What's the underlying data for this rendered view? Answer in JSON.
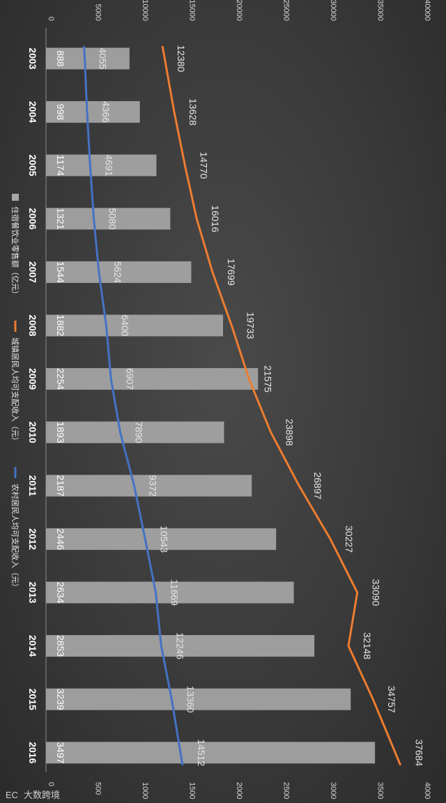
{
  "chart_data": {
    "type": "bar",
    "orientation": "rotated-90-clockwise",
    "categories": [
      "2003",
      "2004",
      "2005",
      "2006",
      "2007",
      "2008",
      "2009",
      "2010",
      "2011",
      "2012",
      "2013",
      "2014",
      "2015",
      "2016"
    ],
    "series": [
      {
        "name": "住宿餐饮业零售额（亿元）",
        "type": "bar",
        "axis": "secondary",
        "color": "#a6a6a6",
        "values": [
          888,
          998,
          1174,
          1321,
          1544,
          1882,
          2254,
          1893,
          2187,
          2446,
          2634,
          2853,
          3239,
          3497
        ]
      },
      {
        "name": "城镇居民人均可支配收入（元）",
        "type": "line",
        "axis": "primary",
        "color": "#ed7d31",
        "values": [
          12380,
          13628,
          14770,
          16016,
          17699,
          19733,
          21575,
          23898,
          26897,
          30227,
          33090,
          32148,
          34757,
          37684
        ]
      },
      {
        "name": "农村居民人均可支配收入（元）",
        "type": "line",
        "axis": "primary",
        "color": "#4472c4",
        "values": [
          4055,
          4366,
          4691,
          5080,
          5624,
          6400,
          6907,
          7890,
          9372,
          10543,
          11669,
          12246,
          13360,
          14512
        ]
      }
    ],
    "primary_axis": {
      "range": [
        0,
        40000
      ],
      "ticks": [
        "0",
        "5000",
        "10000",
        "15000",
        "20000",
        "25000",
        "30000",
        "35000",
        "40000"
      ]
    },
    "secondary_axis": {
      "range": [
        0,
        4000
      ],
      "ticks": [
        "0",
        "500",
        "1000",
        "1500",
        "2000",
        "2500",
        "3000",
        "3500",
        "4000"
      ]
    },
    "legend_position": "right",
    "grid": false
  },
  "watermark": "大数跨境",
  "watermark_logo_text": "EC"
}
